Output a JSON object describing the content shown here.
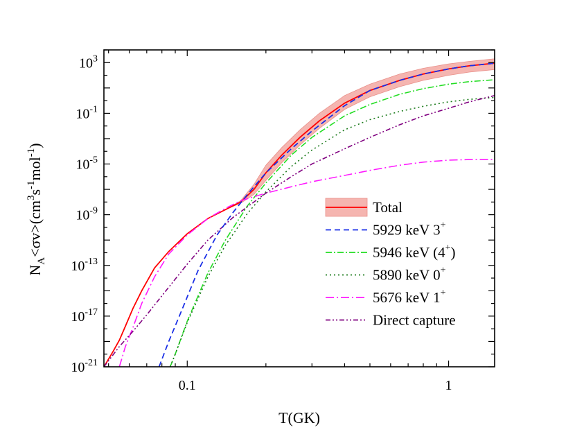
{
  "chart_data": {
    "type": "line",
    "xlabel": "T(GK)",
    "ylabel_parts": {
      "n": "N",
      "a": "A",
      "sv": "<σv>(cm",
      "e3": "3",
      "s": "s",
      "em1": "-1",
      "mol": "mol",
      "em1b": "-1",
      "close": ")"
    },
    "x_scale": "log",
    "y_scale": "log",
    "xlim": [
      0.048,
      1.5
    ],
    "ylim_exp": [
      -21,
      4
    ],
    "x_ticks": [
      {
        "value": 0.1,
        "label": "0.1"
      },
      {
        "value": 1,
        "label": "1"
      }
    ],
    "y_ticks": [
      {
        "exp": -21,
        "base": "10",
        "sup": "-21"
      },
      {
        "exp": -17,
        "base": "10",
        "sup": "-17"
      },
      {
        "exp": -13,
        "base": "10",
        "sup": "-13"
      },
      {
        "exp": -9,
        "base": "10",
        "sup": "-9"
      },
      {
        "exp": -5,
        "base": "10",
        "sup": "-5"
      },
      {
        "exp": -1,
        "base": "10",
        "sup": "-1"
      },
      {
        "exp": 3,
        "base": "10",
        "sup": "3"
      }
    ],
    "legend_position": "bottom-right",
    "series": [
      {
        "name": "Total",
        "legend_main": "Total",
        "legend_sup": "",
        "legend_tail": "",
        "color": "#ff0000",
        "dash": "",
        "band": true,
        "band_color": "#f5b5b0",
        "x": [
          0.048,
          0.052,
          0.055,
          0.058,
          0.062,
          0.067,
          0.075,
          0.085,
          0.1,
          0.12,
          0.14,
          0.16,
          0.18,
          0.2,
          0.23,
          0.27,
          0.32,
          0.4,
          0.5,
          0.65,
          0.8,
          1.0,
          1.2,
          1.5
        ],
        "log_y": [
          -21.0,
          -19.8,
          -18.9,
          -17.8,
          -16.4,
          -15.0,
          -13.2,
          -11.9,
          -10.5,
          -9.3,
          -8.6,
          -8.0,
          -7.0,
          -5.7,
          -4.3,
          -2.9,
          -1.6,
          -0.2,
          0.8,
          1.6,
          2.1,
          2.5,
          2.75,
          2.95
        ],
        "band_lower": [
          -21.0,
          -19.8,
          -18.9,
          -17.8,
          -16.4,
          -15.0,
          -13.2,
          -11.9,
          -10.5,
          -9.3,
          -8.6,
          -8.1,
          -7.4,
          -6.3,
          -4.9,
          -3.5,
          -2.2,
          -0.7,
          0.3,
          1.1,
          1.6,
          2.0,
          2.25,
          2.45
        ],
        "band_upper": [
          -21.0,
          -19.8,
          -18.9,
          -17.8,
          -16.4,
          -15.0,
          -13.2,
          -11.9,
          -10.5,
          -9.3,
          -8.6,
          -7.9,
          -6.6,
          -5.1,
          -3.7,
          -2.3,
          -1.0,
          0.4,
          1.3,
          2.1,
          2.55,
          2.9,
          3.1,
          3.3
        ]
      },
      {
        "name": "5929 keV 3+",
        "legend_main": "5929 keV  3",
        "legend_sup": "+",
        "legend_tail": "",
        "color": "#1a2fe6",
        "dash": "8,5",
        "band": false,
        "x": [
          0.078,
          0.085,
          0.095,
          0.11,
          0.13,
          0.15,
          0.17,
          0.2,
          0.25,
          0.3,
          0.4,
          0.5,
          0.65,
          0.8,
          1.0,
          1.2,
          1.5
        ],
        "log_y": [
          -21.0,
          -19.0,
          -16.6,
          -13.4,
          -10.6,
          -8.8,
          -7.4,
          -5.7,
          -3.8,
          -2.4,
          -0.4,
          0.8,
          1.6,
          2.1,
          2.5,
          2.75,
          2.95
        ]
      },
      {
        "name": "5946 keV (4+)",
        "legend_main": "5946 keV (4",
        "legend_sup": "+",
        "legend_tail": ")",
        "color": "#22dd22",
        "dash": "9,3,2,3",
        "band": false,
        "x": [
          0.086,
          0.09,
          0.1,
          0.12,
          0.14,
          0.17,
          0.2,
          0.25,
          0.3,
          0.4,
          0.5,
          0.65,
          0.8,
          1.0,
          1.2,
          1.5
        ],
        "log_y": [
          -21.0,
          -20.0,
          -17.4,
          -13.6,
          -11.0,
          -8.3,
          -6.5,
          -4.3,
          -2.9,
          -1.2,
          -0.3,
          0.5,
          0.95,
          1.3,
          1.5,
          1.65
        ]
      },
      {
        "name": "5890 keV 0+",
        "legend_main": "5890 keV  0",
        "legend_sup": "+",
        "legend_tail": "",
        "color": "#1a7a1a",
        "dash": "2,4",
        "band": false,
        "x": [
          0.086,
          0.09,
          0.1,
          0.12,
          0.14,
          0.17,
          0.2,
          0.25,
          0.3,
          0.4,
          0.5,
          0.65,
          0.8,
          1.0,
          1.2,
          1.5
        ],
        "log_y": [
          -21.0,
          -20.0,
          -17.5,
          -13.9,
          -11.4,
          -8.9,
          -7.2,
          -5.2,
          -3.9,
          -2.3,
          -1.5,
          -0.85,
          -0.45,
          -0.1,
          0.1,
          0.25
        ]
      },
      {
        "name": "5676 keV 1+",
        "legend_main": "5676 keV  1",
        "legend_sup": "+",
        "legend_tail": "",
        "color": "#ff1aff",
        "dash": "12,4,2,4",
        "band": false,
        "x": [
          0.055,
          0.058,
          0.062,
          0.067,
          0.075,
          0.085,
          0.1,
          0.12,
          0.14,
          0.16,
          0.2,
          0.25,
          0.3,
          0.4,
          0.5,
          0.65,
          0.8,
          1.0,
          1.2,
          1.5
        ],
        "log_y": [
          -21.0,
          -19.4,
          -17.9,
          -16.0,
          -13.9,
          -12.1,
          -10.6,
          -9.3,
          -8.5,
          -7.9,
          -7.3,
          -6.8,
          -6.4,
          -5.9,
          -5.5,
          -5.1,
          -4.85,
          -4.7,
          -4.65,
          -4.65
        ]
      },
      {
        "name": "Direct capture",
        "legend_main": "Direct capture",
        "legend_sup": "",
        "legend_tail": "",
        "color": "#800080",
        "dash": "7,3,2,3,2,3",
        "band": false,
        "x": [
          0.048,
          0.055,
          0.062,
          0.07,
          0.08,
          0.1,
          0.12,
          0.15,
          0.2,
          0.25,
          0.3,
          0.4,
          0.5,
          0.65,
          0.8,
          1.0,
          1.2,
          1.5
        ],
        "log_y": [
          -21.0,
          -19.4,
          -18.2,
          -16.9,
          -15.4,
          -12.9,
          -11.0,
          -9.2,
          -7.3,
          -6.0,
          -5.0,
          -3.8,
          -2.9,
          -1.9,
          -1.2,
          -0.6,
          -0.1,
          0.4
        ]
      }
    ]
  }
}
